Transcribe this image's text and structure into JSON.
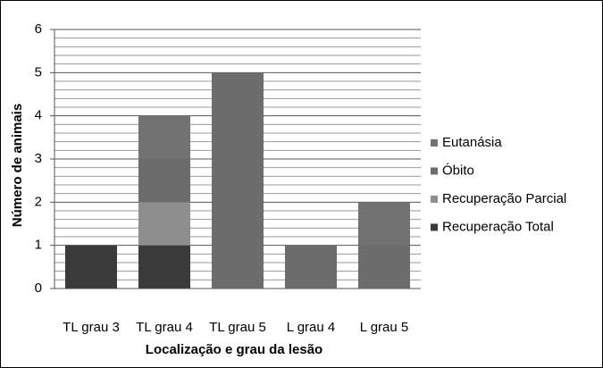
{
  "chart_data": {
    "type": "stacked_bar",
    "x_label": "Localização e grau da lesão",
    "y_label": "Número de animais",
    "categories": [
      "TL grau 3",
      "TL grau 4",
      "TL grau 5",
      "L grau 4",
      "L grau 5"
    ],
    "series": [
      {
        "name": "Recuperação Total",
        "color": "#3b3b3b",
        "values": [
          1,
          1,
          0,
          0,
          0
        ]
      },
      {
        "name": "Recuperação Parcial",
        "color": "#8e8e8e",
        "values": [
          0,
          1,
          0,
          0,
          0
        ]
      },
      {
        "name": "Óbito",
        "color": "#6c6c6c",
        "values": [
          0,
          1,
          5,
          1,
          1
        ]
      },
      {
        "name": "Eutanásia",
        "color": "#727272",
        "values": [
          0,
          1,
          0,
          0,
          1
        ]
      }
    ],
    "ylim": [
      0,
      6
    ],
    "yticks": [
      0,
      1,
      2,
      3,
      4,
      5,
      6
    ],
    "yminorticks": [
      0.2,
      0.4,
      0.6,
      0.8,
      1.2,
      1.4,
      1.6,
      1.8,
      2.2,
      2.4,
      2.6,
      2.8,
      3.2,
      3.4,
      3.6,
      3.8,
      4.2,
      4.4,
      4.6,
      4.8,
      5.2,
      5.4,
      5.6,
      5.8
    ],
    "grid": true,
    "legend": "right"
  }
}
